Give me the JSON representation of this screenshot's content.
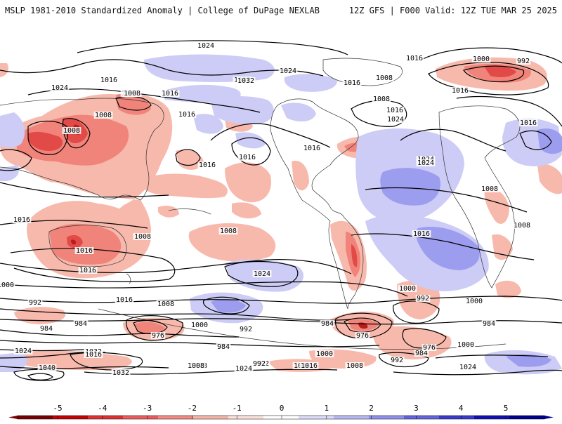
{
  "header": {
    "left_title": "MSLP 1981-2010 Standardized Anomaly | College of DuPage NEXLAB",
    "right_title": "12Z GFS | F000 Valid: 12Z TUE MAR 25 2025"
  },
  "contour_labels": [
    "1024",
    "1016",
    "1032",
    "1024",
    "1016",
    "1008",
    "1024",
    "1016",
    "1008",
    "1016",
    "1000",
    "1008",
    "992",
    "1016",
    "1008",
    "1032",
    "1016",
    "1008",
    "1016",
    "1024",
    "1024",
    "1016",
    "1016",
    "1016",
    "1008",
    "1008",
    "1008",
    "1008",
    "1016",
    "1016",
    "1008",
    "1024",
    "1016",
    "1016",
    "1000",
    "992",
    "1016",
    "1008",
    "1000",
    "984",
    "992",
    "976",
    "1000",
    "992",
    "1000",
    "984",
    "984",
    "1032",
    "1016",
    "984",
    "1024",
    "1040",
    "1032",
    "1008",
    "1024",
    "992",
    "1016",
    "1008",
    "992",
    "1000",
    "976",
    "984",
    "992",
    "976",
    "1000",
    "984",
    "1008",
    "992",
    "1016",
    "1024",
    "1016",
    "1024"
  ],
  "colorbar": {
    "ticks": [
      "-5",
      "-4",
      "-3",
      "-2",
      "-1",
      "0",
      "1",
      "2",
      "3",
      "4",
      "5"
    ],
    "neg_colors": [
      "#7a0000",
      "#c80000",
      "#e23030",
      "#f05a5a",
      "#f58a80",
      "#f8b4a8",
      "#fde0da"
    ],
    "pos_colors": [
      "#dcdcfa",
      "#b8b8f5",
      "#9090ee",
      "#6464e0",
      "#3a3acf",
      "#1010b5",
      "#000090"
    ]
  },
  "colors": {
    "neg_light": "#f8b9ad",
    "neg_mid": "#f0847a",
    "neg_strong": "#e24a48",
    "neg_deep": "#b81c1c",
    "pos_light": "#ccccf6",
    "pos_mid": "#9d9def",
    "pos_strong": "#5a5ee0",
    "contour": "#000000",
    "coast": "#222222"
  }
}
